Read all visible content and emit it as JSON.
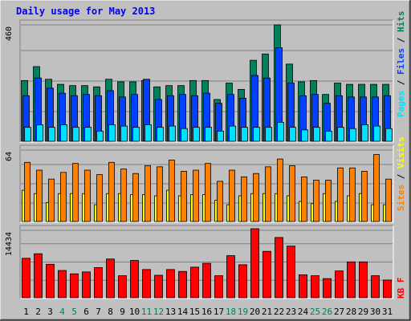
{
  "title": "Daily usage for May 2013",
  "colors": {
    "background": "#C0C0C0",
    "plot": "#C0C0C0",
    "title": "#0000FF",
    "hits": "#00805C",
    "files": "#0040FF",
    "pages": "#00E0FF",
    "visits": "#FFFF00",
    "sites": "#FF8000",
    "kbytes": "#FF0000",
    "weekend_label": "#00805C"
  },
  "chart_data": [
    {
      "type": "bar",
      "panel": "hits-files-pages",
      "ymax_label": "460",
      "ylim": [
        0,
        460
      ],
      "categories": [
        "1",
        "2",
        "3",
        "4",
        "5",
        "6",
        "7",
        "8",
        "9",
        "10",
        "11",
        "12",
        "13",
        "14",
        "15",
        "16",
        "17",
        "18",
        "19",
        "20",
        "21",
        "22",
        "23",
        "24",
        "25",
        "26",
        "27",
        "28",
        "29",
        "30",
        "31"
      ],
      "weekend_days": [
        "4",
        "5",
        "11",
        "12",
        "18",
        "19",
        "25",
        "26"
      ],
      "series": [
        {
          "name": "Hits",
          "values": [
            240,
            295,
            245,
            225,
            220,
            220,
            215,
            245,
            235,
            235,
            240,
            215,
            220,
            220,
            240,
            240,
            165,
            230,
            205,
            320,
            345,
            460,
            305,
            235,
            240,
            185,
            230,
            225,
            225,
            225,
            225
          ]
        },
        {
          "name": "Files",
          "values": [
            180,
            250,
            210,
            190,
            180,
            185,
            180,
            200,
            175,
            185,
            245,
            165,
            180,
            185,
            180,
            190,
            150,
            185,
            170,
            260,
            250,
            370,
            230,
            180,
            185,
            150,
            180,
            175,
            175,
            175,
            180
          ]
        },
        {
          "name": "Pages",
          "values": [
            55,
            65,
            55,
            65,
            55,
            55,
            40,
            65,
            60,
            55,
            65,
            55,
            60,
            50,
            55,
            55,
            40,
            60,
            55,
            55,
            55,
            75,
            55,
            45,
            55,
            40,
            55,
            50,
            65,
            60,
            50
          ]
        }
      ],
      "legend": [
        "Pages",
        "Files",
        "Hits"
      ]
    },
    {
      "type": "bar",
      "panel": "visits-sites",
      "ymax_label": "64",
      "ylim": [
        0,
        64
      ],
      "categories": [
        "1",
        "2",
        "3",
        "4",
        "5",
        "6",
        "7",
        "8",
        "9",
        "10",
        "11",
        "12",
        "13",
        "14",
        "15",
        "16",
        "17",
        "18",
        "19",
        "20",
        "21",
        "22",
        "23",
        "24",
        "25",
        "26",
        "27",
        "28",
        "29",
        "30",
        "31"
      ],
      "series": [
        {
          "name": "Visits",
          "values": [
            28,
            25,
            17,
            25,
            25,
            25,
            15,
            25,
            25,
            24,
            24,
            23,
            28,
            23,
            24,
            24,
            19,
            15,
            23,
            25,
            25,
            25,
            23,
            18,
            16,
            25,
            18,
            23,
            25,
            15,
            15
          ]
        },
        {
          "name": "Sites",
          "values": [
            53,
            46,
            38,
            44,
            52,
            46,
            42,
            53,
            47,
            43,
            50,
            49,
            55,
            45,
            46,
            52,
            36,
            46,
            40,
            43,
            49,
            56,
            50,
            40,
            37,
            37,
            48,
            48,
            45,
            60,
            38
          ]
        }
      ],
      "legend": [
        "Sites",
        "Visits"
      ]
    },
    {
      "type": "bar",
      "panel": "kbytes",
      "ymax_label": "14434",
      "ylim": [
        0,
        14434
      ],
      "categories": [
        "1",
        "2",
        "3",
        "4",
        "5",
        "6",
        "7",
        "8",
        "9",
        "10",
        "11",
        "12",
        "13",
        "14",
        "15",
        "16",
        "17",
        "18",
        "19",
        "20",
        "21",
        "22",
        "23",
        "24",
        "25",
        "26",
        "27",
        "28",
        "29",
        "30",
        "31"
      ],
      "series": [
        {
          "name": "KB F",
          "values": [
            8250,
            9200,
            7000,
            5700,
            5000,
            5400,
            6300,
            8100,
            4600,
            7800,
            5900,
            4700,
            5900,
            5500,
            6400,
            7200,
            4600,
            8800,
            6900,
            14434,
            9700,
            12600,
            10800,
            4800,
            4600,
            4000,
            5600,
            7500,
            7500,
            4600,
            3700
          ]
        }
      ],
      "legend": [
        "KB F"
      ]
    }
  ]
}
